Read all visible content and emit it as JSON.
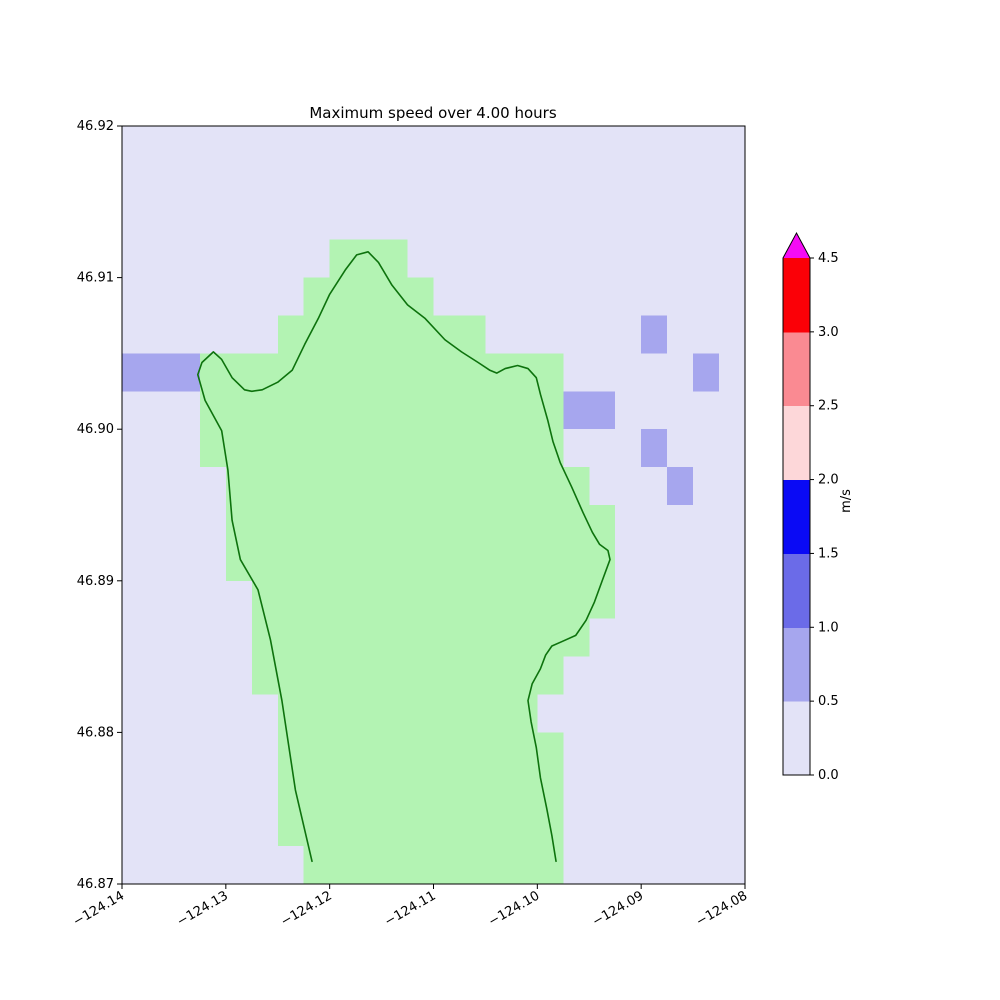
{
  "chart_data": {
    "type": "heatmap",
    "title": "Maximum speed over 4.00 hours",
    "xlabel": "",
    "ylabel": "",
    "xlim": [
      -124.14,
      -124.08
    ],
    "ylim": [
      46.87,
      46.92
    ],
    "x_tick_labels": [
      "−124.14",
      "−124.13",
      "−124.12",
      "−124.11",
      "−124.10",
      "−124.09",
      "−124.08"
    ],
    "x_tick_values": [
      -124.14,
      -124.13,
      -124.12,
      -124.11,
      -124.1,
      -124.09,
      -124.08
    ],
    "y_tick_labels": [
      "46.87",
      "46.88",
      "46.89",
      "46.90",
      "46.91",
      "46.92"
    ],
    "y_tick_values": [
      46.87,
      46.88,
      46.89,
      46.9,
      46.91,
      46.92
    ],
    "cell_size_deg": 0.0025,
    "colors": {
      "water": "#e3e3f7",
      "land": "#b3f3b3",
      "coastline": "#0d720d",
      "low_speed_cell": "#a6a6ee",
      "frame": "#000000"
    },
    "colorbar": {
      "label": "m/s",
      "tick_labels": [
        "0.0",
        "0.5",
        "1.0",
        "1.5",
        "2.0",
        "2.5",
        "3.0",
        "4.5"
      ],
      "boundaries": [
        0.0,
        0.5,
        1.0,
        1.5,
        2.0,
        2.5,
        3.0,
        4.5
      ],
      "segment_colors": [
        "#e3e3f7",
        "#a6a6ee",
        "#6b6be8",
        "#0a0af5",
        "#fdd7d9",
        "#fa8a92",
        "#fb0007"
      ],
      "over_color": "#f50cf5",
      "extend": "max"
    },
    "speed_cells_0p5_to_1p0": [
      {
        "lon_min": -124.14,
        "lon_max": -124.1325,
        "lat_min": 46.9025,
        "lat_max": 46.905
      },
      {
        "lon_min": -124.09,
        "lon_max": -124.0875,
        "lat_min": 46.905,
        "lat_max": 46.9075
      },
      {
        "lon_min": -124.085,
        "lon_max": -124.0825,
        "lat_min": 46.9025,
        "lat_max": 46.905
      },
      {
        "lon_min": -124.0975,
        "lon_max": -124.0925,
        "lat_min": 46.9,
        "lat_max": 46.9025
      },
      {
        "lon_min": -124.09,
        "lon_max": -124.0875,
        "lat_min": 46.8975,
        "lat_max": 46.9
      },
      {
        "lon_min": -124.0875,
        "lon_max": -124.085,
        "lat_min": 46.895,
        "lat_max": 46.8975
      }
    ],
    "coastline": [
      [
        -124.1217,
        46.8715
      ],
      [
        -124.1233,
        46.8762
      ],
      [
        -124.1246,
        46.8821
      ],
      [
        -124.1257,
        46.8861
      ],
      [
        -124.1269,
        46.8894
      ],
      [
        -124.1286,
        46.8914
      ],
      [
        -124.1294,
        46.894
      ],
      [
        -124.1298,
        46.8973
      ],
      [
        -124.1304,
        46.8999
      ],
      [
        -124.132,
        46.9019
      ],
      [
        -124.1327,
        46.9036
      ],
      [
        -124.1323,
        46.9044
      ],
      [
        -124.1312,
        46.9051
      ],
      [
        -124.1304,
        46.9046
      ],
      [
        -124.1294,
        46.9034
      ],
      [
        -124.1282,
        46.9026
      ],
      [
        -124.1275,
        46.9025
      ],
      [
        -124.1265,
        46.9026
      ],
      [
        -124.125,
        46.9031
      ],
      [
        -124.1236,
        46.9039
      ],
      [
        -124.1224,
        46.9056
      ],
      [
        -124.1211,
        46.9073
      ],
      [
        -124.12,
        46.9089
      ],
      [
        -124.1185,
        46.9105
      ],
      [
        -124.1174,
        46.9115
      ],
      [
        -124.1163,
        46.9117
      ],
      [
        -124.1153,
        46.911
      ],
      [
        -124.114,
        46.9095
      ],
      [
        -124.1125,
        46.9082
      ],
      [
        -124.1108,
        46.9073
      ],
      [
        -124.1089,
        46.9059
      ],
      [
        -124.1073,
        46.9051
      ],
      [
        -124.1057,
        46.9044
      ],
      [
        -124.1046,
        46.9039
      ],
      [
        -124.1039,
        46.9037
      ],
      [
        -124.1031,
        46.904
      ],
      [
        -124.1019,
        46.9042
      ],
      [
        -124.1009,
        46.904
      ],
      [
        -124.1001,
        46.9034
      ],
      [
        -124.0997,
        46.9023
      ],
      [
        -124.099,
        46.9006
      ],
      [
        -124.0985,
        46.8992
      ],
      [
        -124.0978,
        46.8978
      ],
      [
        -124.0967,
        46.8962
      ],
      [
        -124.0956,
        46.8945
      ],
      [
        -124.0947,
        46.8932
      ],
      [
        -124.094,
        46.8924
      ],
      [
        -124.0932,
        46.892
      ],
      [
        -124.093,
        46.8914
      ],
      [
        -124.0937,
        46.8901
      ],
      [
        -124.0945,
        46.8886
      ],
      [
        -124.0953,
        46.8874
      ],
      [
        -124.0963,
        46.8864
      ],
      [
        -124.0976,
        46.886
      ],
      [
        -124.0986,
        46.8857
      ],
      [
        -124.0992,
        46.8851
      ],
      [
        -124.0997,
        46.8842
      ],
      [
        -124.1005,
        46.8832
      ],
      [
        -124.1009,
        46.8821
      ],
      [
        -124.1006,
        46.8807
      ],
      [
        -124.1001,
        46.879
      ],
      [
        -124.0997,
        46.877
      ],
      [
        -124.0991,
        46.875
      ],
      [
        -124.0986,
        46.8732
      ],
      [
        -124.0982,
        46.8715
      ]
    ]
  }
}
